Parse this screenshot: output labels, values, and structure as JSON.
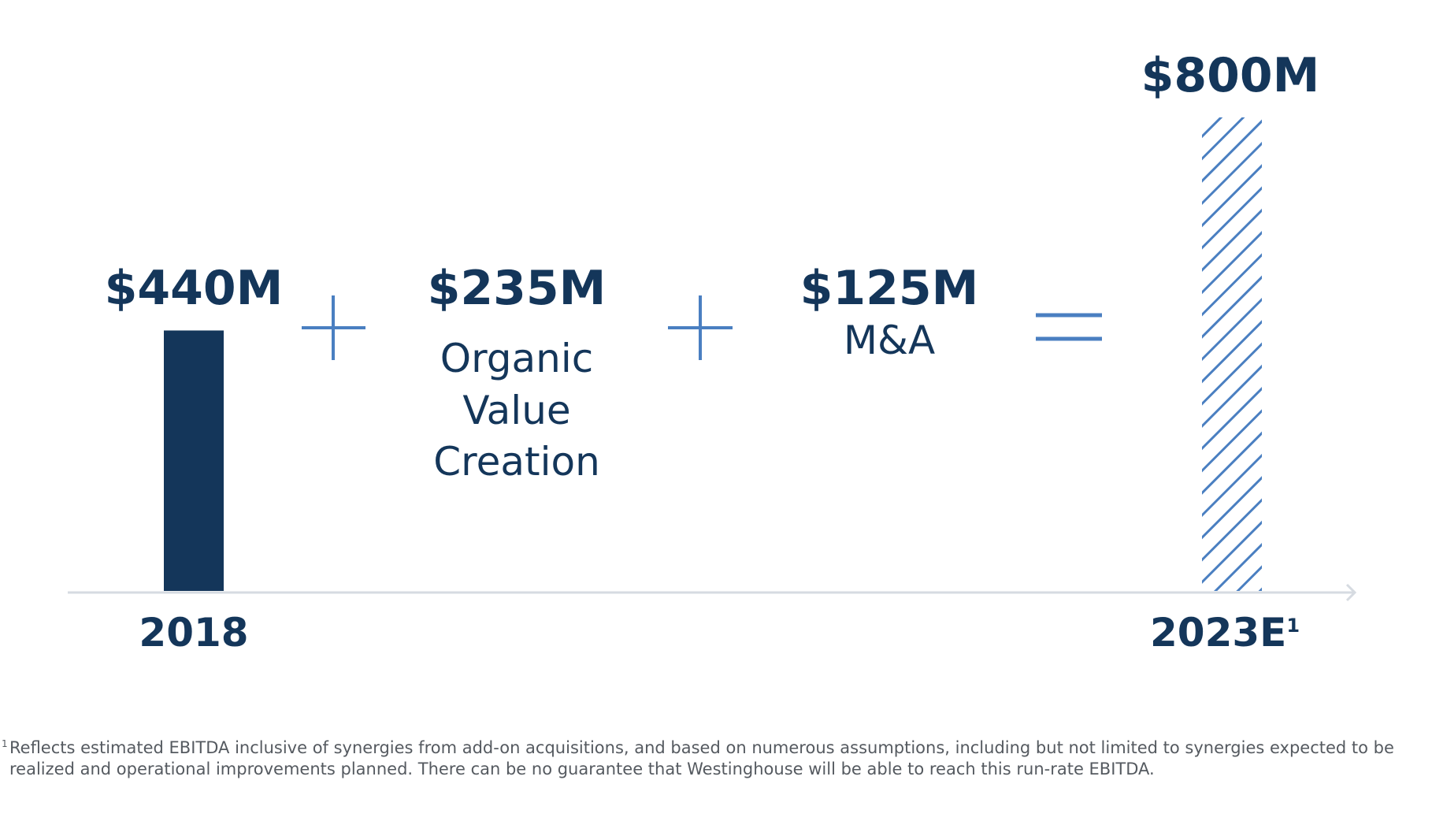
{
  "chart_data": {
    "type": "bar",
    "categories": [
      "2018",
      "2023E"
    ],
    "category_superscripts": [
      "",
      "1"
    ],
    "values": [
      440,
      800
    ],
    "value_labels": [
      "$440M",
      "$800M"
    ],
    "bar_styles": [
      "solid",
      "hatched"
    ],
    "ylim": [
      0,
      800
    ],
    "grid": false,
    "components": [
      {
        "value": 235,
        "label": "$235M",
        "description": [
          "Organic",
          "Value",
          "Creation"
        ]
      },
      {
        "value": 125,
        "label": "$125M",
        "description": [
          "M&A"
        ]
      }
    ],
    "operators": [
      "+",
      "+",
      "="
    ],
    "colors": {
      "bar": "#14365a",
      "accent": "#4a7fc1",
      "axis": "#d6dbe1",
      "footnote": "#555a60"
    }
  },
  "footnote": {
    "mark": "1",
    "text": "Reflects estimated EBITDA inclusive of synergies from add-on acquisitions, and based on numerous assumptions, including but not limited to synergies expected to be realized and operational improvements planned. There can be no guarantee that Westinghouse will be able to reach this run-rate EBITDA."
  }
}
